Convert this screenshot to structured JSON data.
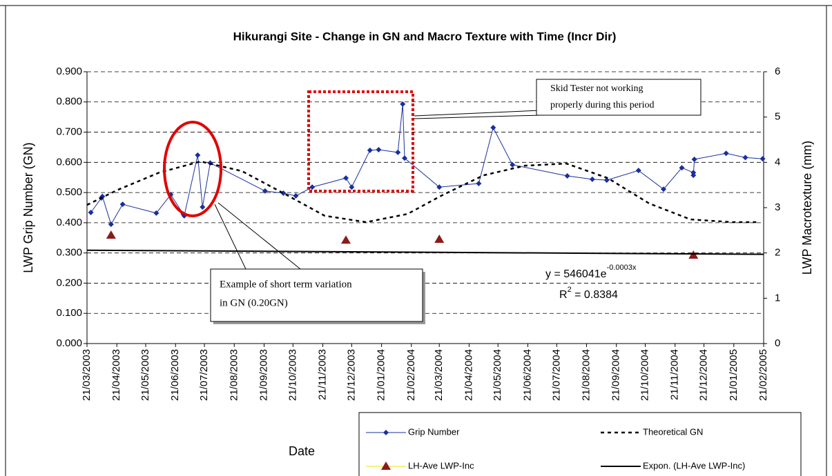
{
  "chart_data": {
    "type": "line",
    "title": "Hikurangi Site - Change in GN and Macro Texture with Time (Incr Dir)",
    "x_label": "Date",
    "y_label": "LWP Grip Number (GN)",
    "y2_label": "LWP Macrotexture (mm)",
    "xlim": [
      "21/03/2003",
      "21/02/2005"
    ],
    "xticks": [
      "21/03/2003",
      "21/04/2003",
      "21/05/2003",
      "21/06/2003",
      "21/07/2003",
      "21/08/2003",
      "21/09/2003",
      "21/10/2003",
      "21/11/2003",
      "21/12/2003",
      "21/01/2004",
      "21/02/2004",
      "21/03/2004",
      "21/04/2004",
      "21/05/2004",
      "21/06/2004",
      "21/07/2004",
      "21/08/2004",
      "21/09/2004",
      "21/10/2004",
      "21/11/2004",
      "21/12/2004",
      "21/01/2005",
      "21/02/2005"
    ],
    "ylim": [
      0,
      0.9
    ],
    "yticks": [
      {
        "value": 0,
        "label": "0.000"
      },
      {
        "value": 0.1,
        "label": "0.100"
      },
      {
        "value": 0.2,
        "label": "0.200"
      },
      {
        "value": 0.3,
        "label": "0.300"
      },
      {
        "value": 0.4,
        "label": "0.400"
      },
      {
        "value": 0.5,
        "label": "0.500"
      },
      {
        "value": 0.6,
        "label": "0.600"
      },
      {
        "value": 0.7,
        "label": "0.700"
      },
      {
        "value": 0.8,
        "label": "0.800"
      },
      {
        "value": 0.9,
        "label": "0.900"
      }
    ],
    "y2lim": [
      0,
      6
    ],
    "y2ticks": [
      0,
      1,
      2,
      3,
      4,
      5,
      6
    ],
    "grid": true,
    "legend": "bottom",
    "series": [
      {
        "name": "Grip Number",
        "color": "#1a2f9c",
        "marker": "diamond",
        "line": "solid",
        "x": [
          "25/03/2003",
          "05/04/2003",
          "06/04/2003",
          "15/04/2003",
          "27/04/2003",
          "01/06/2003",
          "16/06/2003",
          "29/06/2003",
          "30/06/2003",
          "14/07/2003",
          "19/07/2003",
          "27/07/2003",
          "22/09/2003",
          "11/10/2003",
          "24/10/2003",
          "10/11/2003",
          "15/12/2003",
          "21/12/2003",
          "09/01/2004",
          "18/01/2004",
          "07/02/2004",
          "12/02/2004",
          "14/02/2004",
          "21/03/2004",
          "01/05/2004",
          "16/05/2004",
          "05/06/2004",
          "01/08/2004",
          "27/08/2004",
          "11/09/2004",
          "14/10/2004",
          "09/11/2004",
          "28/11/2004",
          "10/12/2004",
          "10/12/2004",
          "11/12/2004",
          "13/01/2005",
          "02/02/2005",
          "20/02/2005"
        ],
        "values": [
          0.434,
          0.482,
          0.487,
          0.395,
          0.461,
          0.432,
          0.493,
          0.429,
          0.423,
          0.624,
          0.452,
          0.598,
          0.505,
          0.498,
          0.489,
          0.518,
          0.548,
          0.518,
          0.64,
          0.642,
          0.633,
          0.793,
          0.614,
          0.518,
          0.53,
          0.715,
          0.592,
          0.555,
          0.544,
          0.541,
          0.573,
          0.511,
          0.582,
          0.566,
          0.557,
          0.61,
          0.63,
          0.616,
          0.612
        ]
      },
      {
        "name": "Theoretical GN",
        "color": "#000000",
        "marker": "none",
        "line": "dashed",
        "x": [
          "21/03/2003",
          "22/04/2003",
          "04/06/2003",
          "17/07/2003",
          "29/08/2003",
          "11/10/2003",
          "23/11/2003",
          "05/01/2004",
          "17/02/2004",
          "24/03/2004",
          "06/05/2004",
          "18/06/2004",
          "31/07/2004",
          "12/09/2004",
          "25/10/2004",
          "07/12/2004",
          "19/01/2005",
          "16/02/2005"
        ],
        "values": [
          0.459,
          0.509,
          0.566,
          0.603,
          0.571,
          0.498,
          0.423,
          0.402,
          0.429,
          0.491,
          0.557,
          0.589,
          0.596,
          0.548,
          0.464,
          0.411,
          0.402,
          0.402
        ]
      },
      {
        "name": "LH-Ave LWP-Inc",
        "color": "#8b1a1a",
        "line_color": "#f2e600",
        "marker": "triangle",
        "line": "none",
        "axis": "y2",
        "x": [
          "15/04/2003",
          "15/12/2003",
          "21/03/2004",
          "10/12/2004"
        ],
        "values": [
          2.39,
          2.28,
          2.3,
          1.95
        ]
      },
      {
        "name": "Expon. (LH-Ave LWP-Inc)",
        "color": "#000000",
        "marker": "none",
        "line": "solid",
        "axis": "y2",
        "x": [
          "21/03/2003",
          "21/02/2005"
        ],
        "values": [
          2.06,
          1.97
        ]
      }
    ],
    "annotations": {
      "skid_note": [
        "Skid  Tester not working",
        "properly during this period"
      ],
      "variation_note": [
        "Example of short term variation",
        "in GN (0.20GN)"
      ],
      "equation": {
        "base": "y = 546041e",
        "exponent": "-0.0003x"
      },
      "r_squared": {
        "base": "R",
        "exponent": "2",
        "rest": " = 0.8384"
      }
    }
  }
}
